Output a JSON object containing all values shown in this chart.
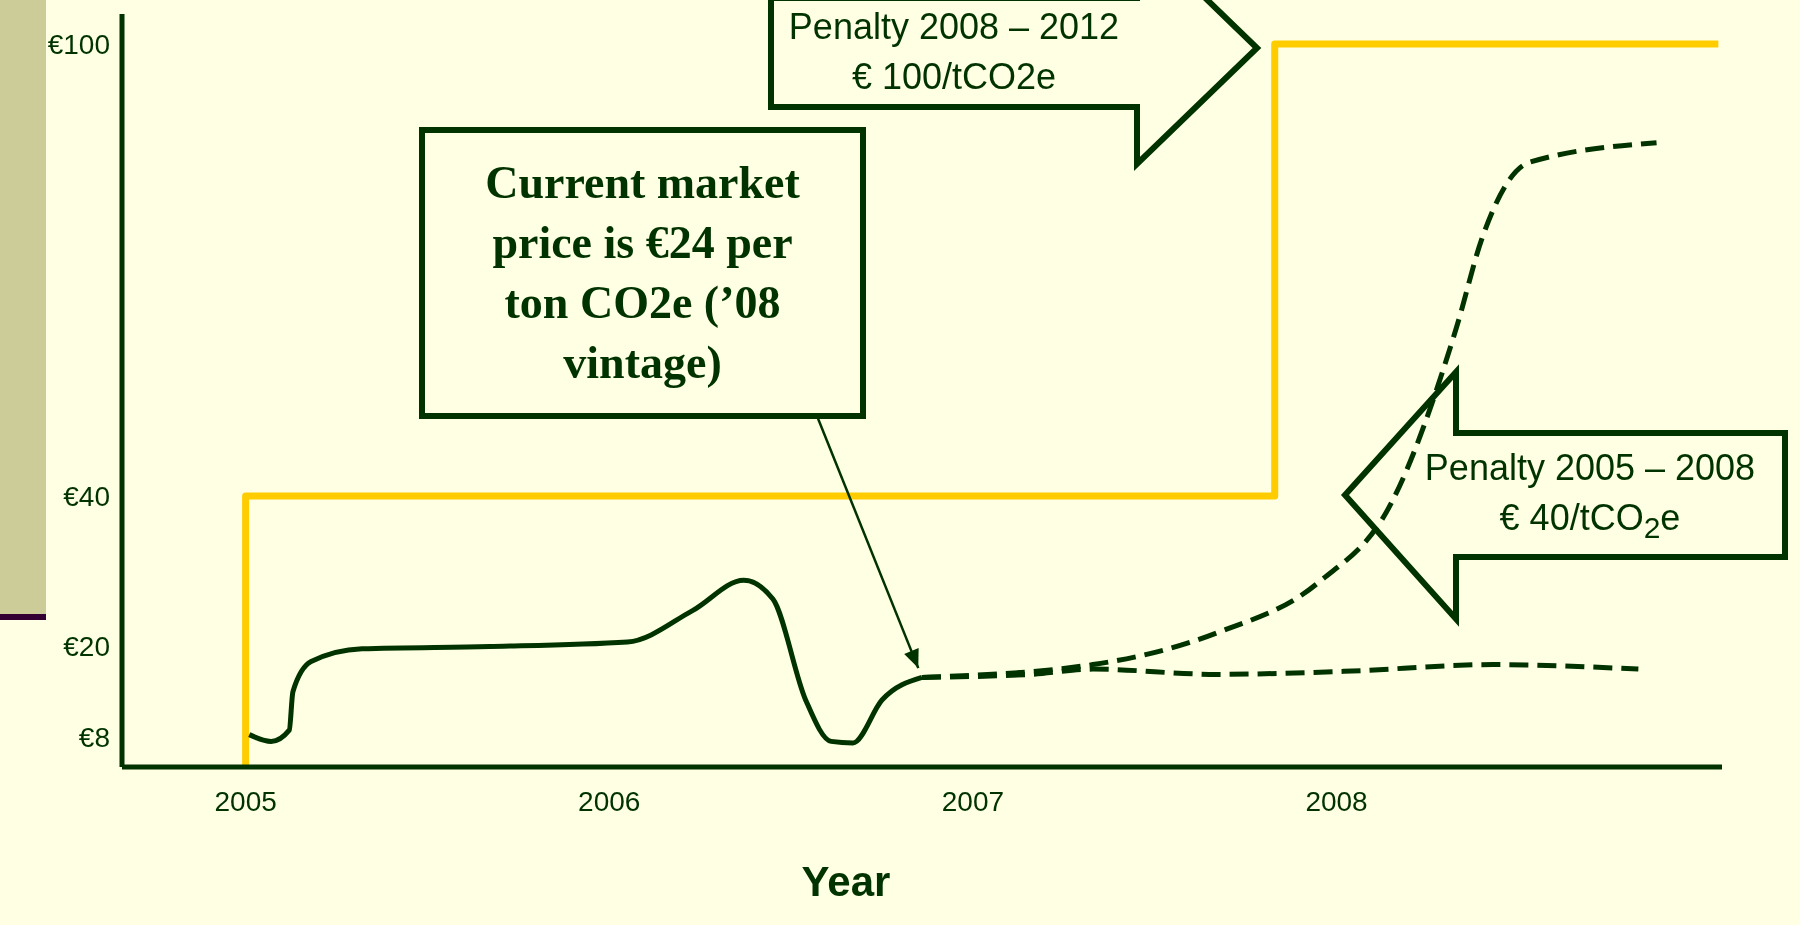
{
  "chart_data": {
    "type": "line",
    "xlabel": "Year",
    "xlim": [
      2004.66,
      2009.06
    ],
    "xticks": [
      2005,
      2006,
      2007,
      2008
    ],
    "ylim": [
      4,
      104
    ],
    "yticks": [
      {
        "value": 8,
        "label": "€8"
      },
      {
        "value": 20,
        "label": "€20"
      },
      {
        "value": 40,
        "label": "€40"
      },
      {
        "value": 100,
        "label": "€100"
      }
    ],
    "series": [
      {
        "color": "#ffcc00",
        "line_style": "solid",
        "x": [
          2005,
          2005,
          2007.83,
          2007.83,
          2009.05
        ],
        "values": [
          4,
          40,
          40,
          100,
          100
        ]
      },
      {
        "color": "#003300",
        "line_style": "solid",
        "x": [
          2005.01,
          2005.07,
          2005.12,
          2005.13,
          2005.18,
          2005.32,
          2005.67,
          2006.05,
          2006.23,
          2006.37,
          2006.45,
          2006.54,
          2006.61,
          2006.67,
          2006.75,
          2006.86
        ],
        "values": [
          8.3,
          7.4,
          8.9,
          14.0,
          18,
          19.7,
          20,
          20.6,
          24.8,
          28.8,
          26.3,
          12.9,
          7.4,
          7.2,
          12.9,
          15.9
        ]
      },
      {
        "color": "#003300",
        "line_style": "dashed",
        "x": [
          2006.86,
          2007.16,
          2007.33,
          2007.67,
          2008.02,
          2008.43,
          2008.83
        ],
        "values": [
          15.9,
          16.3,
          17,
          16.3,
          16.7,
          17.6,
          17
        ]
      },
      {
        "color": "#003300",
        "line_style": "dashed",
        "x": [
          2006.86,
          2007.33,
          2007.67,
          2007.95,
          2008.15,
          2008.33,
          2008.4,
          2008.53,
          2008.88
        ],
        "values": [
          15.9,
          17.6,
          21.8,
          28.5,
          39,
          62.4,
          74.2,
          84.3,
          86.9
        ]
      }
    ],
    "annotations": [
      "Penalty 2008 – 2012\n€ 100/tCO2e",
      "Current market price is €24 per ton CO2e (’08 vintage)",
      "Penalty 2005 – 2008\n€ 40/tCO$_{2}$e"
    ]
  }
}
